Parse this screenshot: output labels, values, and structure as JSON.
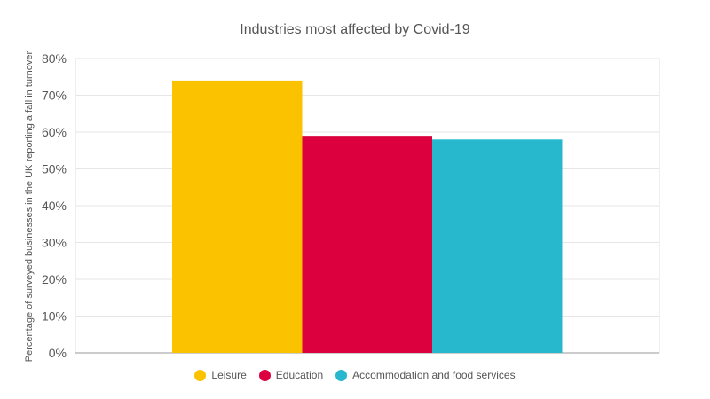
{
  "chart_data": {
    "type": "bar",
    "title": "Industries most affected by Covid-19",
    "xlabel": "",
    "ylabel": "Percentage of surveyed businesses in the UK reporting a fall in turnover",
    "ylim": [
      0,
      80
    ],
    "y_ticks": [
      "0%",
      "10%",
      "20%",
      "30%",
      "40%",
      "50%",
      "60%",
      "70%",
      "80%"
    ],
    "grid": true,
    "legend_position": "bottom",
    "series": [
      {
        "name": "Leisure",
        "value": 74,
        "color": "#FBC200"
      },
      {
        "name": "Education",
        "value": 59,
        "color": "#DC003F"
      },
      {
        "name": "Accommodation and food services",
        "value": 58,
        "color": "#27B8CD"
      }
    ]
  }
}
